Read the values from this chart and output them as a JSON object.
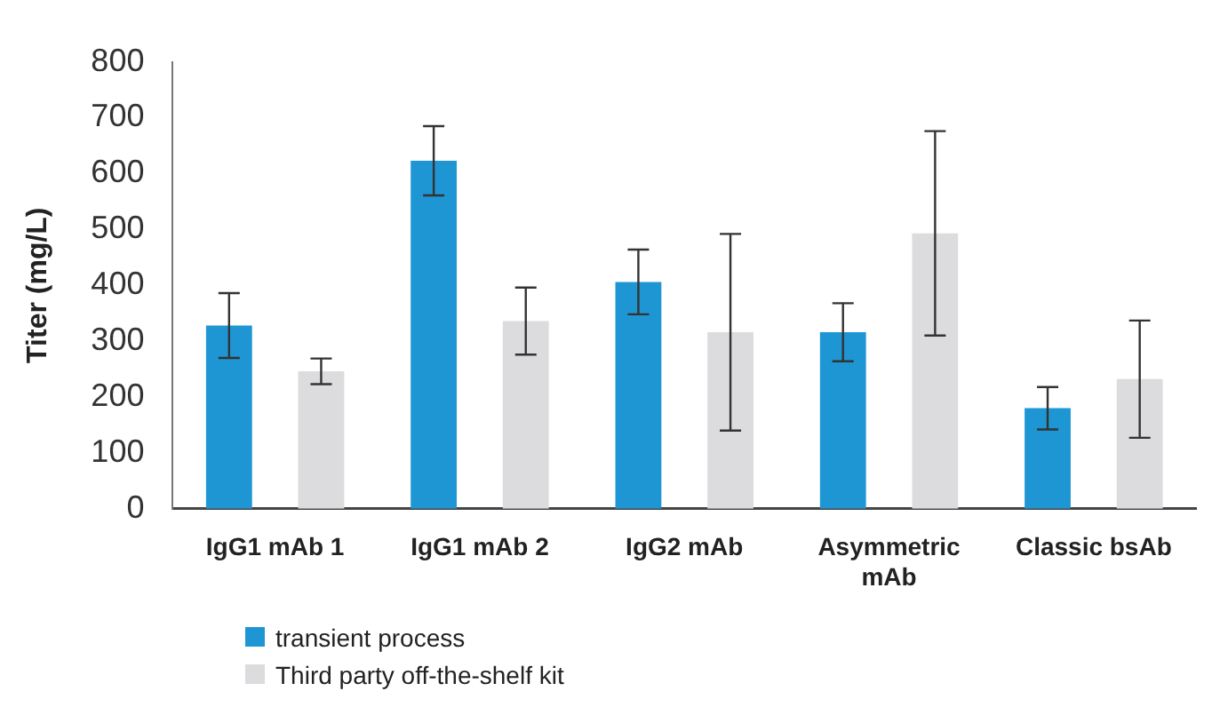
{
  "chart_data": {
    "type": "bar",
    "ylabel": "Titer (mg/L)",
    "categories": [
      "IgG1 mAb 1",
      "IgG1 mAb 2",
      "IgG2 mAb",
      "Asymmetric mAb",
      "Classic bsAb"
    ],
    "series": [
      {
        "name": "transient process",
        "color": "#1e96d4",
        "values": [
          328,
          623,
          406,
          316,
          180
        ],
        "errors": [
          58,
          62,
          58,
          52,
          38
        ]
      },
      {
        "name": "Third party off-the-shelf kit",
        "color": "#dcdcde",
        "values": [
          246,
          336,
          316,
          493,
          232
        ],
        "errors": [
          23,
          60,
          176,
          183,
          105
        ]
      }
    ],
    "ylim": [
      0,
      800
    ],
    "yticks": [
      0,
      100,
      200,
      300,
      400,
      500,
      600,
      700,
      800
    ],
    "grid": false,
    "legend": "bottom"
  }
}
